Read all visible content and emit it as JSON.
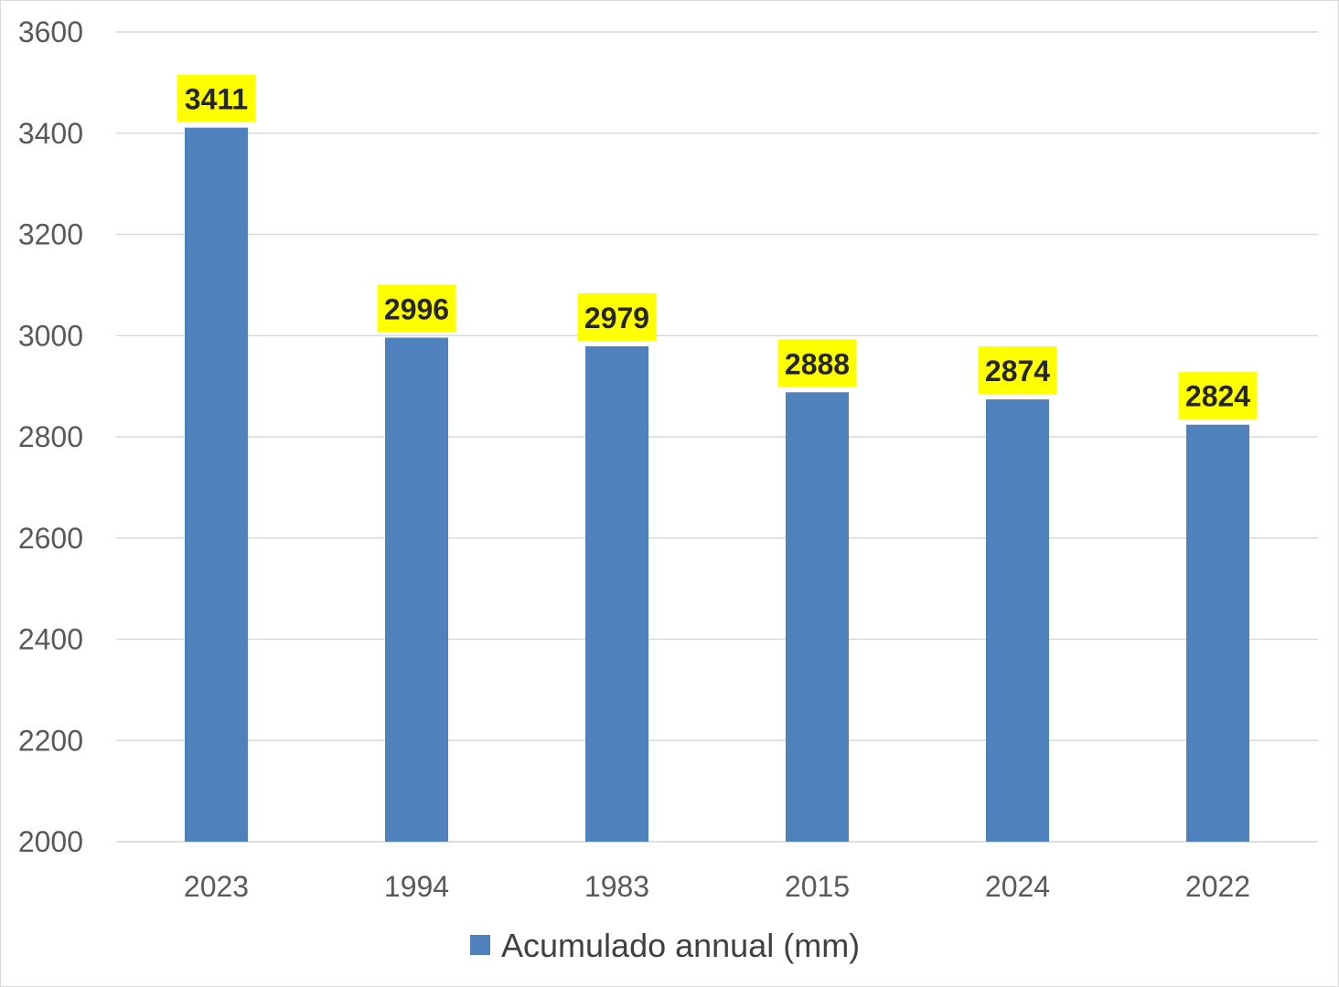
{
  "chart_data": {
    "type": "bar",
    "categories": [
      "2023",
      "1994",
      "1983",
      "2015",
      "2024",
      "2022"
    ],
    "series": [
      {
        "name": "Acumulado annual (mm)",
        "values": [
          3411,
          2996,
          2979,
          2888,
          2874,
          2824
        ],
        "color": "#4f81bd"
      }
    ],
    "data_labels": [
      "3411",
      "2996",
      "2979",
      "2888",
      "2874",
      "2824"
    ],
    "data_label_highlight": "#ffff00",
    "ylim": [
      2000,
      3600
    ],
    "yticks": [
      "2000",
      "2200",
      "2400",
      "2600",
      "2800",
      "3000",
      "3200",
      "3400",
      "3600"
    ],
    "grid": true,
    "legend_position": "bottom",
    "title": "",
    "xlabel": "",
    "ylabel": ""
  }
}
